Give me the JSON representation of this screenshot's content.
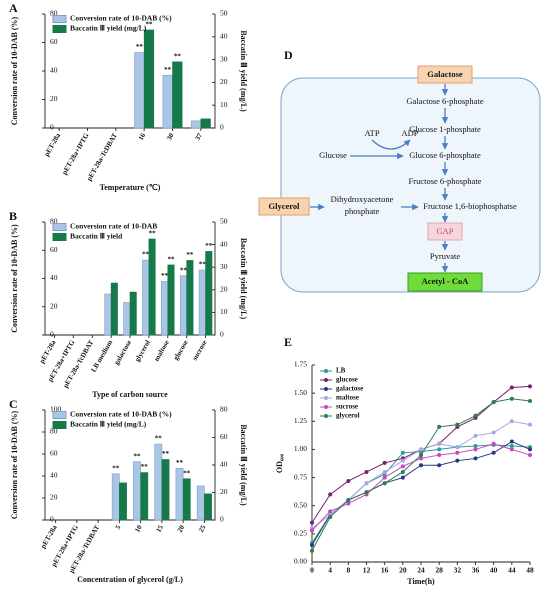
{
  "chart_data": [
    {
      "type": "bar",
      "panel": "A",
      "xlabel": "Temperature (℃)",
      "ylabel": "Conversion rate of 10-DAB (%)",
      "y2label": "Baccatin Ⅲ yield (mg/L)",
      "categories": [
        "pET-28a",
        "pET-28a+IPTG",
        "pET-28a-TcDBAT",
        "16",
        "30",
        "37"
      ],
      "ylim": [
        0,
        80
      ],
      "yticks": [
        0,
        20,
        40,
        60,
        80
      ],
      "y2lim": [
        0,
        50
      ],
      "y2ticks": [
        0,
        10,
        20,
        30,
        40,
        50
      ],
      "series": [
        {
          "name": "Conversion rate of 10-DAB (%)",
          "color": "#aac6e6",
          "values": [
            null,
            null,
            null,
            53,
            37,
            5
          ],
          "significance": [
            null,
            null,
            null,
            "**",
            "**",
            null
          ]
        },
        {
          "name": "Baccatin Ⅲ yield (mg/L)",
          "color": "#15794a",
          "axis": "y2",
          "values": [
            null,
            null,
            null,
            43,
            29,
            4
          ],
          "significance": [
            null,
            null,
            null,
            "**",
            "**",
            null
          ]
        }
      ]
    },
    {
      "type": "bar",
      "panel": "B",
      "xlabel": "Type of carbon source",
      "ylabel": "Conversion rate of 10-DAB (%)",
      "y2label": "Baccatin Ⅲ yield (mg/L)",
      "categories": [
        "pET-28a",
        "pET-28a+IPTG",
        "pET-28a-TcDBAT",
        "LB medium",
        "galactose",
        "glycerol",
        "maltose",
        "glucose",
        "sucrose"
      ],
      "ylim": [
        0,
        80
      ],
      "yticks": [
        0,
        20,
        40,
        60,
        80
      ],
      "y2lim": [
        0,
        50
      ],
      "y2ticks": [
        0,
        10,
        20,
        30,
        40,
        50
      ],
      "series": [
        {
          "name": "Conversion rate of 10-DAB",
          "color": "#aac6e6",
          "values": [
            null,
            null,
            null,
            29,
            23,
            53,
            38,
            42,
            46
          ],
          "significance": [
            null,
            null,
            null,
            null,
            null,
            "**",
            "**",
            "**",
            "**"
          ]
        },
        {
          "name": "Baccatin Ⅲ yield",
          "color": "#15794a",
          "axis": "y2",
          "values": [
            null,
            null,
            null,
            23,
            19,
            42.5,
            31,
            33,
            37
          ],
          "significance": [
            null,
            null,
            null,
            null,
            null,
            "**",
            "**",
            "**",
            "**"
          ]
        }
      ]
    },
    {
      "type": "bar",
      "panel": "C",
      "xlabel": "Concentration of glycerol (g/L)",
      "ylabel": "Conversion rate of 10-DAB (%)",
      "y2label": "Baccatin Ⅲ yield (mg/L)",
      "categories": [
        "pET-28a",
        "pET-28a+IPTG",
        "pET-28a-TcDBAT",
        "5",
        "10",
        "15",
        "20",
        "25"
      ],
      "ylim": [
        0,
        100
      ],
      "yticks": [
        0,
        20,
        40,
        60,
        80,
        100
      ],
      "y2lim": [
        0,
        80
      ],
      "y2ticks": [
        0,
        20,
        40,
        60,
        80
      ],
      "series": [
        {
          "name": "Conversion rate of 10-DAB (%)",
          "color": "#aac6e6",
          "values": [
            null,
            null,
            null,
            42,
            53,
            69,
            47,
            31
          ],
          "significance": [
            null,
            null,
            null,
            "**",
            "**",
            "**",
            "**",
            null
          ]
        },
        {
          "name": "Baccatin Ⅲ yield (mg/L)",
          "color": "#15794a",
          "axis": "y2",
          "values": [
            null,
            null,
            null,
            27,
            34.5,
            44,
            30,
            19
          ],
          "significance": [
            null,
            null,
            null,
            null,
            "**",
            "**",
            "**",
            null
          ]
        }
      ]
    },
    {
      "type": "line",
      "panel": "E",
      "xlabel": "Time(h)",
      "ylabel": "OD₆₀₀",
      "legend": "upper-left",
      "x": [
        0,
        4,
        8,
        12,
        16,
        20,
        24,
        28,
        32,
        36,
        40,
        44,
        48
      ],
      "xlim": [
        0,
        48
      ],
      "xticks": [
        0,
        4,
        8,
        12,
        16,
        20,
        24,
        28,
        32,
        36,
        40,
        44,
        48
      ],
      "ylim": [
        0,
        1.75
      ],
      "yticks": [
        {
          "value": 0,
          "label": "0.00"
        },
        {
          "value": 0.25,
          "label": "0.25"
        },
        {
          "value": 0.5,
          "label": "0.50"
        },
        {
          "value": 0.75,
          "label": "0.75"
        },
        {
          "value": 1,
          "label": "1.00"
        },
        {
          "value": 1.25,
          "label": "1.25"
        },
        {
          "value": 1.5,
          "label": "1.50"
        },
        {
          "value": 1.75,
          "label": "1.75"
        }
      ],
      "series": [
        {
          "name": "LB",
          "color": "#2a9a9a",
          "values": [
            0.17,
            0.42,
            0.55,
            0.7,
            0.78,
            0.97,
            0.98,
            1.0,
            1.02,
            1.03,
            1.04,
            1.03,
            1.02
          ]
        },
        {
          "name": "glucose",
          "color": "#7a1f6e",
          "values": [
            0.35,
            0.6,
            0.72,
            0.8,
            0.88,
            0.92,
            1.0,
            1.05,
            1.2,
            1.28,
            1.42,
            1.55,
            1.56
          ]
        },
        {
          "name": "galactose",
          "color": "#2b3a80",
          "values": [
            0.15,
            0.42,
            0.55,
            0.62,
            0.7,
            0.75,
            0.86,
            0.86,
            0.9,
            0.92,
            0.97,
            1.07,
            1.0
          ]
        },
        {
          "name": "maltose",
          "color": "#a9a6e6",
          "values": [
            0.3,
            0.42,
            0.55,
            0.7,
            0.8,
            0.9,
            1.0,
            1.05,
            1.02,
            1.12,
            1.15,
            1.25,
            1.22
          ]
        },
        {
          "name": "sucrose",
          "color": "#c447c4",
          "values": [
            0.28,
            0.45,
            0.52,
            0.6,
            0.75,
            0.85,
            0.92,
            0.95,
            0.97,
            1.0,
            1.05,
            1.0,
            0.95
          ]
        },
        {
          "name": "glycerol",
          "color": "#2e7d4f",
          "values": [
            0.1,
            0.4,
            0.55,
            0.62,
            0.7,
            0.8,
            0.95,
            1.2,
            1.22,
            1.3,
            1.42,
            1.45,
            1.43
          ]
        }
      ]
    }
  ],
  "diagram": {
    "panel": "D",
    "nodes": [
      "Galactose",
      "Galactose 6-phosphate",
      "Glucose 1-phosphate",
      "Glucose",
      "Glucose 6-phosphate",
      "Fructose 6-phosphate",
      "Glycerol",
      [
        "Dihydroxyacetone",
        "phosphate"
      ],
      "Fructose 1,6-biophosphatse",
      "GAP",
      "Pyruvate",
      "Acetyl - CoA"
    ],
    "cofactors": [
      "ATP",
      "ADP"
    ]
  }
}
